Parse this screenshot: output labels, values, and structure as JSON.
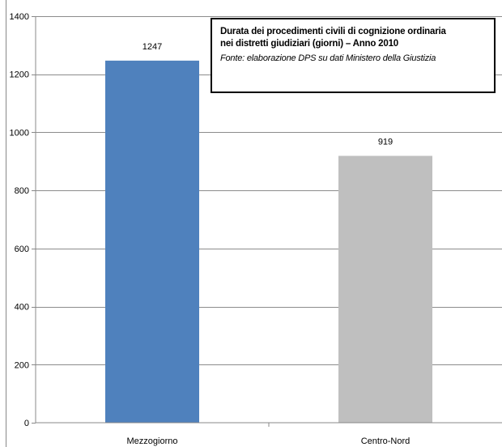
{
  "chart_data": {
    "type": "bar",
    "categories": [
      "Mezzogiorno",
      "Centro-Nord"
    ],
    "values": [
      1247,
      919
    ],
    "data_labels": [
      "1247",
      "919"
    ],
    "colors": [
      "#4f81bd",
      "#bfbfbf"
    ],
    "title": "Durata dei procedimenti civili di cognizione ordinaria",
    "title_line2": "nei distretti giudiziari (giorni) – Anno 2010",
    "source": "Fonte: elaborazione DPS su dati Ministero della Giustizia",
    "ylim": [
      0,
      1400
    ],
    "yticks": [
      0,
      200,
      400,
      600,
      800,
      1000,
      1200,
      1400
    ],
    "grid": true,
    "legend": "none"
  }
}
